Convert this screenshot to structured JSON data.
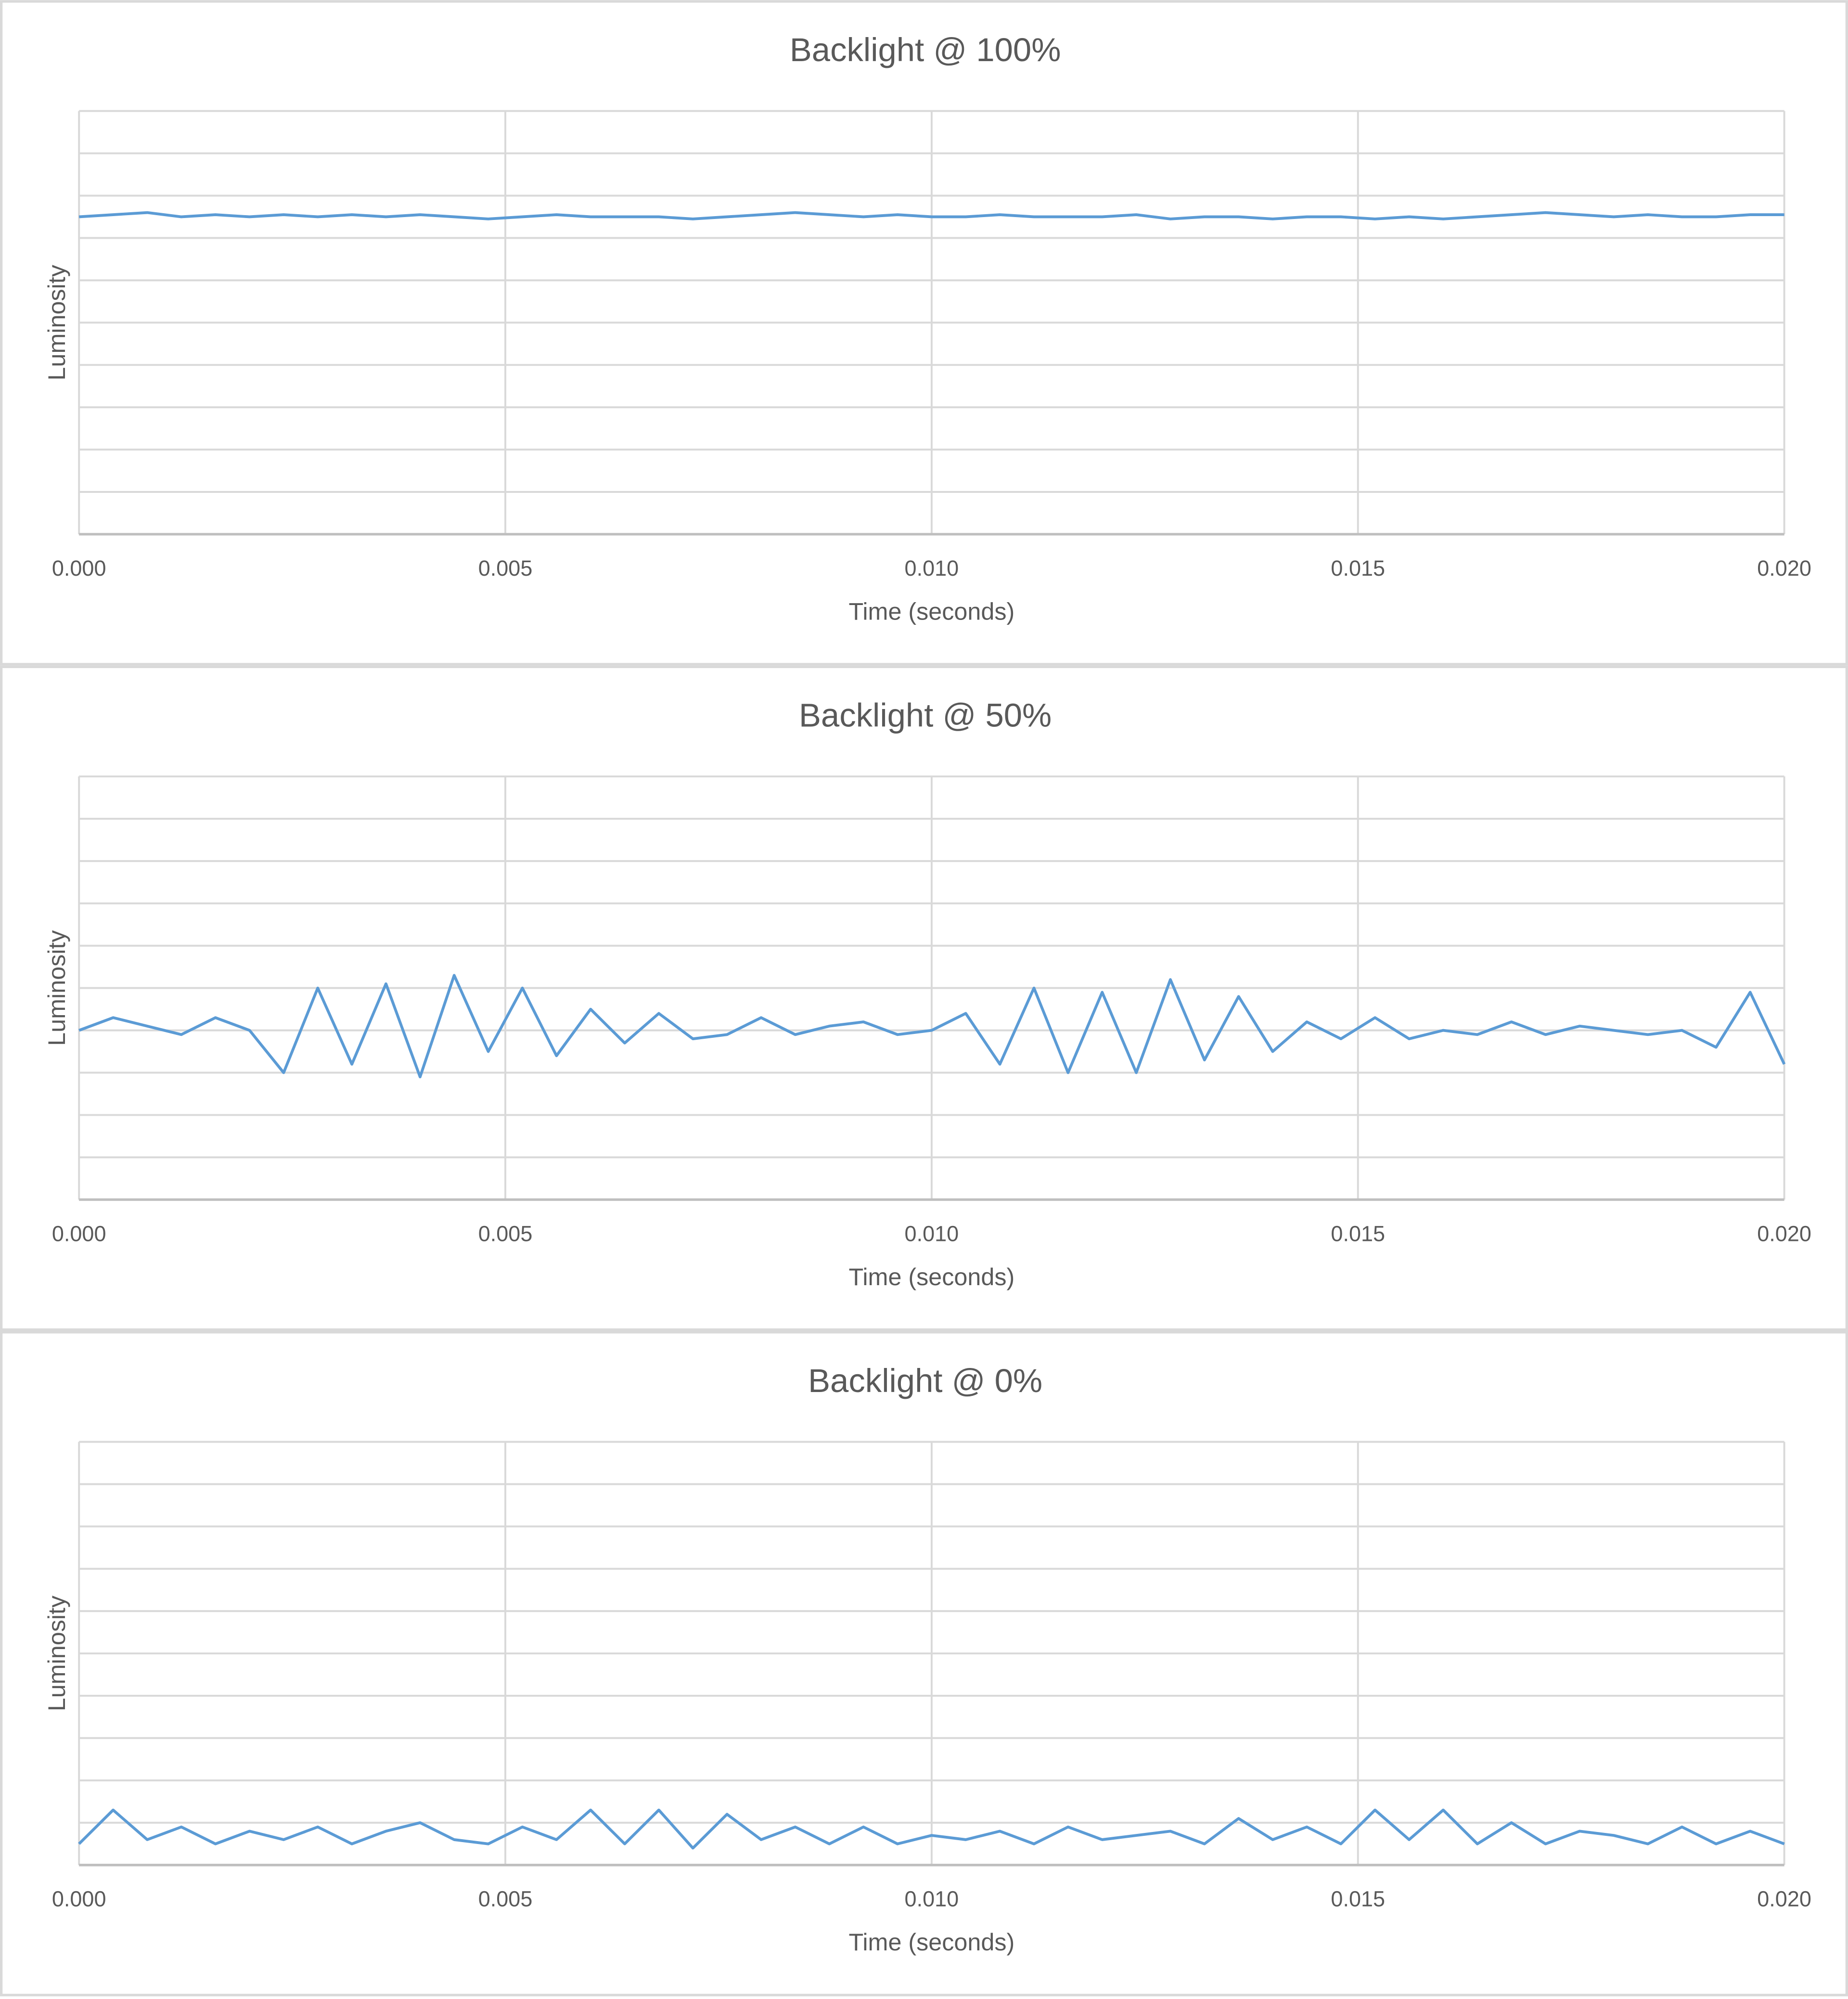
{
  "chart_data": [
    {
      "type": "line",
      "title": "Backlight @ 100%",
      "x_label": "Time (seconds)",
      "y_label": "Luminosity",
      "color": "#5b9bd5",
      "grid": true,
      "x": [
        0,
        0.0004,
        0.0008,
        0.0012,
        0.0016,
        0.002,
        0.0024,
        0.0028,
        0.0032,
        0.0036,
        0.004,
        0.0044,
        0.0048,
        0.0052,
        0.0056,
        0.006,
        0.0064,
        0.0068,
        0.0072,
        0.0076,
        0.008,
        0.0084,
        0.0088,
        0.0092,
        0.0096,
        0.01,
        0.0104,
        0.0108,
        0.0112,
        0.0116,
        0.012,
        0.0124,
        0.0128,
        0.0132,
        0.0136,
        0.014,
        0.0144,
        0.0148,
        0.0152,
        0.0156,
        0.016,
        0.0164,
        0.0168,
        0.0172,
        0.0176,
        0.018,
        0.0184,
        0.0188,
        0.0192,
        0.0196,
        0.02
      ],
      "values": [
        7.5,
        7.55,
        7.6,
        7.5,
        7.55,
        7.5,
        7.55,
        7.5,
        7.55,
        7.5,
        7.55,
        7.5,
        7.45,
        7.5,
        7.55,
        7.5,
        7.5,
        7.5,
        7.45,
        7.5,
        7.55,
        7.6,
        7.55,
        7.5,
        7.55,
        7.5,
        7.5,
        7.55,
        7.5,
        7.5,
        7.5,
        7.55,
        7.45,
        7.5,
        7.5,
        7.45,
        7.5,
        7.5,
        7.45,
        7.5,
        7.45,
        7.5,
        7.55,
        7.6,
        7.55,
        7.5,
        7.55,
        7.5,
        7.5,
        7.55,
        7.55
      ],
      "xlim": [
        0,
        0.02
      ],
      "xticks": [
        {
          "value": 0,
          "label": "0.000"
        },
        {
          "value": 0.005,
          "label": "0.005"
        },
        {
          "value": 0.01,
          "label": "0.010"
        },
        {
          "value": 0.015,
          "label": "0.015"
        },
        {
          "value": 0.02,
          "label": "0.020"
        }
      ],
      "ylim": [
        0,
        10
      ],
      "yticks": [
        0,
        1,
        2,
        3,
        4,
        5,
        6,
        7,
        8,
        9,
        10
      ]
    },
    {
      "type": "line",
      "title": "Backlight @ 50%",
      "x_label": "Time (seconds)",
      "y_label": "Luminosity",
      "color": "#5b9bd5",
      "grid": true,
      "x": [
        0,
        0.0004,
        0.0008,
        0.0012,
        0.0016,
        0.002,
        0.0024,
        0.0028,
        0.0032,
        0.0036,
        0.004,
        0.0044,
        0.0048,
        0.0052,
        0.0056,
        0.006,
        0.0064,
        0.0068,
        0.0072,
        0.0076,
        0.008,
        0.0084,
        0.0088,
        0.0092,
        0.0096,
        0.01,
        0.0104,
        0.0108,
        0.0112,
        0.0116,
        0.012,
        0.0124,
        0.0128,
        0.0132,
        0.0136,
        0.014,
        0.0144,
        0.0148,
        0.0152,
        0.0156,
        0.016,
        0.0164,
        0.0168,
        0.0172,
        0.0176,
        0.018,
        0.0184,
        0.0188,
        0.0192,
        0.0196,
        0.02
      ],
      "values": [
        4.0,
        4.3,
        4.1,
        3.9,
        4.3,
        4.0,
        3.0,
        5.0,
        3.2,
        5.1,
        2.9,
        5.3,
        3.5,
        5.0,
        3.4,
        4.5,
        3.7,
        4.4,
        3.8,
        3.9,
        4.3,
        3.9,
        4.1,
        4.2,
        3.9,
        4.0,
        4.4,
        3.2,
        5.0,
        3.0,
        4.9,
        3.0,
        5.2,
        3.3,
        4.8,
        3.5,
        4.2,
        3.8,
        4.3,
        3.8,
        4.0,
        3.9,
        4.2,
        3.9,
        4.1,
        4.0,
        3.9,
        4.0,
        3.6,
        4.9,
        3.2
      ],
      "xlim": [
        0,
        0.02
      ],
      "xticks": [
        {
          "value": 0,
          "label": "0.000"
        },
        {
          "value": 0.005,
          "label": "0.005"
        },
        {
          "value": 0.01,
          "label": "0.010"
        },
        {
          "value": 0.015,
          "label": "0.015"
        },
        {
          "value": 0.02,
          "label": "0.020"
        }
      ],
      "ylim": [
        0,
        10
      ],
      "yticks": [
        0,
        1,
        2,
        3,
        4,
        5,
        6,
        7,
        8,
        9,
        10
      ]
    },
    {
      "type": "line",
      "title": "Backlight @ 0%",
      "x_label": "Time (seconds)",
      "y_label": "Luminosity",
      "color": "#5b9bd5",
      "grid": true,
      "x": [
        0,
        0.0004,
        0.0008,
        0.0012,
        0.0016,
        0.002,
        0.0024,
        0.0028,
        0.0032,
        0.0036,
        0.004,
        0.0044,
        0.0048,
        0.0052,
        0.0056,
        0.006,
        0.0064,
        0.0068,
        0.0072,
        0.0076,
        0.008,
        0.0084,
        0.0088,
        0.0092,
        0.0096,
        0.01,
        0.0104,
        0.0108,
        0.0112,
        0.0116,
        0.012,
        0.0124,
        0.0128,
        0.0132,
        0.0136,
        0.014,
        0.0144,
        0.0148,
        0.0152,
        0.0156,
        0.016,
        0.0164,
        0.0168,
        0.0172,
        0.0176,
        0.018,
        0.0184,
        0.0188,
        0.0192,
        0.0196,
        0.02
      ],
      "values": [
        0.5,
        1.3,
        0.6,
        0.9,
        0.5,
        0.8,
        0.6,
        0.9,
        0.5,
        0.8,
        1.0,
        0.6,
        0.5,
        0.9,
        0.6,
        1.3,
        0.5,
        1.3,
        0.4,
        1.2,
        0.6,
        0.9,
        0.5,
        0.9,
        0.5,
        0.7,
        0.6,
        0.8,
        0.5,
        0.9,
        0.6,
        0.7,
        0.8,
        0.5,
        1.1,
        0.6,
        0.9,
        0.5,
        1.3,
        0.6,
        1.3,
        0.5,
        1.0,
        0.5,
        0.8,
        0.7,
        0.5,
        0.9,
        0.5,
        0.8,
        0.5
      ],
      "xlim": [
        0,
        0.02
      ],
      "xticks": [
        {
          "value": 0,
          "label": "0.000"
        },
        {
          "value": 0.005,
          "label": "0.005"
        },
        {
          "value": 0.01,
          "label": "0.010"
        },
        {
          "value": 0.015,
          "label": "0.015"
        },
        {
          "value": 0.02,
          "label": "0.020"
        }
      ],
      "ylim": [
        0,
        10
      ],
      "yticks": [
        0,
        1,
        2,
        3,
        4,
        5,
        6,
        7,
        8,
        9,
        10
      ]
    }
  ]
}
